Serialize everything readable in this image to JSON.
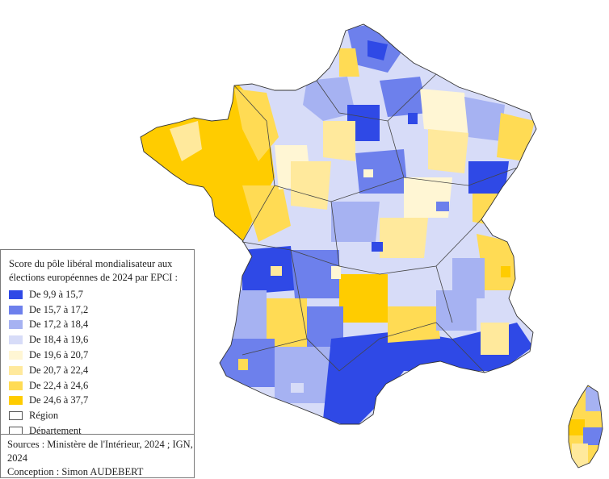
{
  "legend": {
    "title": "Score du pôle libéral mondialisateur aux élections européennes de 2024 par EPCI :",
    "classes": [
      {
        "label": "De 9,9 à 15,7",
        "color": "#2f49e6"
      },
      {
        "label": "De 15,7 à 17,2",
        "color": "#6d80ec"
      },
      {
        "label": "De 17,2 à 18,4",
        "color": "#a6b2f2"
      },
      {
        "label": "De 18,4 à 19,6",
        "color": "#d7dcf8"
      },
      {
        "label": "De 19,6 à 20,7",
        "color": "#fff6d4"
      },
      {
        "label": "De 20,7 à 22,4",
        "color": "#ffe99c"
      },
      {
        "label": "De 22,4 à 24,6",
        "color": "#ffdb54"
      },
      {
        "label": "De 24,6 à 37,7",
        "color": "#ffcc00"
      }
    ],
    "boundaries": [
      {
        "label": "Région"
      },
      {
        "label": "Département"
      }
    ]
  },
  "sources": {
    "line1": "Sources : Ministère de l'Intérieur, 2024 ; IGN,",
    "line2": "2024",
    "line3": "Conception : Simon AUDEBERT"
  }
}
